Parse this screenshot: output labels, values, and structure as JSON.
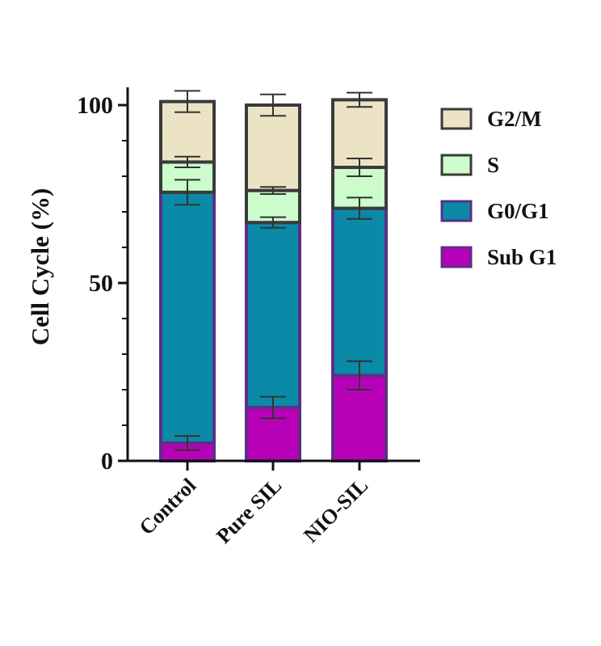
{
  "chart_data": {
    "type": "bar",
    "stacked": true,
    "ylabel": "Cell Cycle (%)",
    "xlabel": "",
    "ylim": [
      0,
      100
    ],
    "yticks": [
      0,
      50,
      100
    ],
    "legend_position": "right",
    "categories": [
      "Control",
      "Pure SIL",
      "NIO-SIL"
    ],
    "series": [
      {
        "name": "Sub G1",
        "values": [
          5,
          15,
          24
        ],
        "errors": [
          2,
          3,
          4
        ],
        "fill": "#b800b8",
        "stroke": "#5b2f86"
      },
      {
        "name": "G0/G1",
        "values": [
          70.5,
          52,
          47
        ],
        "errors": [
          3.5,
          1.5,
          3
        ],
        "fill": "#0a8aa6",
        "stroke": "#5b2f86"
      },
      {
        "name": "S",
        "values": [
          8.5,
          9,
          11.5
        ],
        "errors": [
          1.5,
          1,
          2.5
        ],
        "fill": "#ccfccc",
        "stroke": "#3a3a3a"
      },
      {
        "name": "G2/M",
        "values": [
          17,
          24,
          19
        ],
        "errors": [
          3,
          3,
          2
        ],
        "fill": "#ece3c5",
        "stroke": "#3a3a3a"
      }
    ]
  }
}
